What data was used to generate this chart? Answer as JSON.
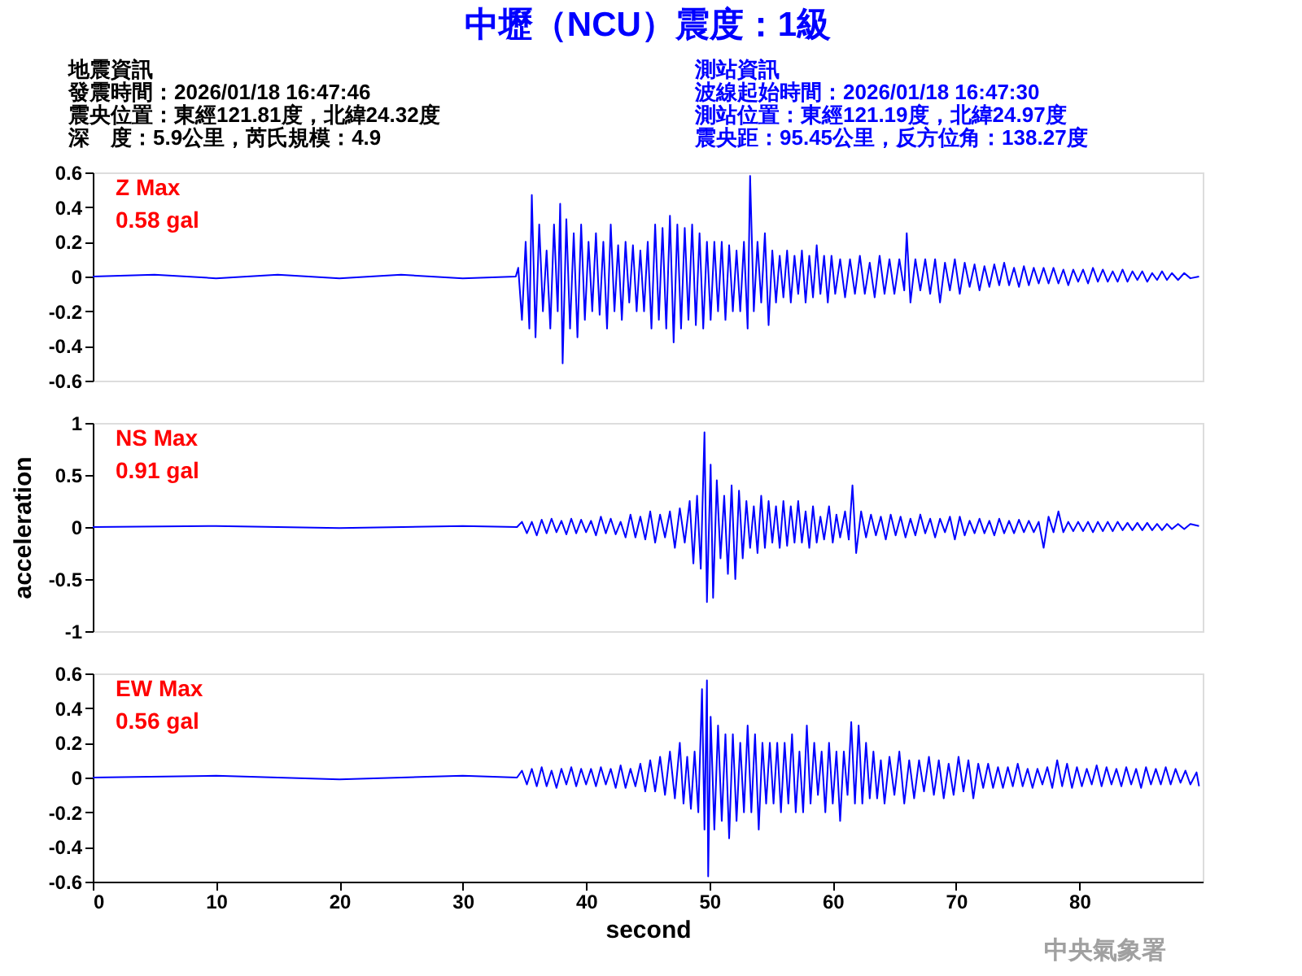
{
  "chart_data": [
    {
      "type": "line",
      "title": "中壢（NCU）震度：1級",
      "annotations": [
        "Z Max",
        "0.58 gal",
        "地震資訊",
        "發震時間：2026/01/18 16:47:46",
        "震央位置：東經121.81度，北緯24.32度",
        "深　度：5.9公里，芮氏規模：4.9",
        "測站資訊",
        "波線起始時間：2026/01/18 16:47:30",
        "測站位置：東經121.19度，北緯24.97度",
        "震央距：95.45公里，反方位角：138.27度"
      ],
      "xlim": [
        0,
        90
      ],
      "ylim": [
        -0.6,
        0.6
      ],
      "yticks": [
        -0.6,
        -0.4,
        -0.2,
        0,
        0.2,
        0.4,
        0.6
      ],
      "tick_labels": "y",
      "series": [
        {
          "color": "#0000ff",
          "x": [
            0,
            5,
            10,
            15,
            20,
            25,
            30,
            34.3,
            34.5,
            34.8,
            35.1,
            35.4,
            35.6,
            35.9,
            36.2,
            36.5,
            36.8,
            37.1,
            37.4,
            37.7,
            37.9,
            38.1,
            38.4,
            38.7,
            39.0,
            39.3,
            39.6,
            39.9,
            40.2,
            40.5,
            40.8,
            41.1,
            41.4,
            41.7,
            42.0,
            42.3,
            42.6,
            42.9,
            43.2,
            43.5,
            43.8,
            44.1,
            44.4,
            44.7,
            45.0,
            45.3,
            45.6,
            45.9,
            46.2,
            46.5,
            46.8,
            47.1,
            47.4,
            47.7,
            48.0,
            48.3,
            48.6,
            48.9,
            49.2,
            49.5,
            49.8,
            50.1,
            50.4,
            50.7,
            51.0,
            51.3,
            51.6,
            51.9,
            52.2,
            52.5,
            52.8,
            53.1,
            53.3,
            53.6,
            53.9,
            54.2,
            54.5,
            54.8,
            55.1,
            55.4,
            55.7,
            56.0,
            56.3,
            56.6,
            56.9,
            57.2,
            57.5,
            57.8,
            58.1,
            58.4,
            58.7,
            59.0,
            59.3,
            59.6,
            59.9,
            60.2,
            60.6,
            61.0,
            61.4,
            61.8,
            62.2,
            62.6,
            63.0,
            63.4,
            63.8,
            64.2,
            64.6,
            65.0,
            65.4,
            65.8,
            66.0,
            66.3,
            66.7,
            67.1,
            67.5,
            67.9,
            68.3,
            68.7,
            69.1,
            69.5,
            69.9,
            70.3,
            70.7,
            71.1,
            71.5,
            71.9,
            72.3,
            72.7,
            73.1,
            73.5,
            73.9,
            74.3,
            74.7,
            75.1,
            75.5,
            75.9,
            76.3,
            76.7,
            77.1,
            77.5,
            77.9,
            78.3,
            78.7,
            79.1,
            79.5,
            79.9,
            80.3,
            80.7,
            81.1,
            81.5,
            81.9,
            82.3,
            82.7,
            83.1,
            83.5,
            83.9,
            84.3,
            84.7,
            85.1,
            85.5,
            85.9,
            86.3,
            86.7,
            87.1,
            87.5,
            88.0,
            88.5,
            89.0,
            89.7
          ],
          "values": [
            0,
            0.01,
            -0.01,
            0.01,
            -0.01,
            0.01,
            -0.01,
            0,
            0.05,
            -0.25,
            0.2,
            -0.3,
            0.47,
            -0.35,
            0.3,
            -0.2,
            0.15,
            -0.3,
            0.3,
            -0.2,
            0.42,
            -0.5,
            0.33,
            -0.3,
            0.25,
            -0.35,
            0.3,
            -0.25,
            0.2,
            -0.2,
            0.25,
            -0.22,
            0.2,
            -0.3,
            0.3,
            -0.2,
            0.18,
            -0.25,
            0.2,
            -0.15,
            0.18,
            -0.2,
            0.15,
            -0.2,
            0.2,
            -0.3,
            0.3,
            -0.25,
            0.28,
            -0.3,
            0.35,
            -0.38,
            0.3,
            -0.3,
            0.28,
            -0.25,
            0.3,
            -0.28,
            0.25,
            -0.3,
            0.2,
            -0.25,
            0.2,
            -0.2,
            0.2,
            -0.25,
            0.18,
            -0.2,
            0.15,
            -0.2,
            0.2,
            -0.3,
            0.58,
            -0.2,
            0.2,
            -0.15,
            0.25,
            -0.28,
            0.15,
            -0.15,
            0.12,
            -0.12,
            0.15,
            -0.15,
            0.12,
            -0.1,
            0.15,
            -0.15,
            0.12,
            -0.12,
            0.18,
            -0.1,
            0.12,
            -0.15,
            0.12,
            -0.1,
            0.1,
            -0.12,
            0.1,
            -0.1,
            0.12,
            -0.1,
            0.08,
            -0.12,
            0.12,
            -0.1,
            0.1,
            -0.1,
            0.1,
            -0.08,
            0.25,
            -0.15,
            0.1,
            -0.08,
            0.1,
            -0.1,
            0.1,
            -0.15,
            0.08,
            -0.08,
            0.1,
            -0.1,
            0.08,
            -0.06,
            0.07,
            -0.08,
            0.06,
            -0.06,
            0.07,
            -0.05,
            0.08,
            -0.05,
            0.05,
            -0.06,
            0.06,
            -0.05,
            0.05,
            -0.04,
            0.05,
            -0.04,
            0.05,
            -0.04,
            0.04,
            -0.05,
            0.04,
            -0.03,
            0.04,
            -0.04,
            0.05,
            -0.03,
            0.04,
            -0.03,
            0.03,
            -0.03,
            0.04,
            -0.03,
            0.03,
            -0.02,
            0.03,
            -0.03,
            0.02,
            -0.02,
            0.03,
            -0.02,
            0.02,
            -0.02,
            0.02,
            -0.01,
            0
          ]
        }
      ]
    },
    {
      "type": "line",
      "annotations": [
        "NS Max",
        "0.91 gal"
      ],
      "ylabel": "acceleration",
      "xlim": [
        0,
        90
      ],
      "ylim": [
        -1,
        1
      ],
      "yticks": [
        -1,
        -0.5,
        0,
        0.5,
        1
      ],
      "tick_labels": "y",
      "series": [
        {
          "color": "#0000ff",
          "x": [
            0,
            10,
            20,
            30,
            34.4,
            34.8,
            35.2,
            35.6,
            36.0,
            36.4,
            36.8,
            37.2,
            37.6,
            38.0,
            38.4,
            38.8,
            39.2,
            39.6,
            40.0,
            40.4,
            40.8,
            41.2,
            41.6,
            42.0,
            42.4,
            42.8,
            43.2,
            43.6,
            44.0,
            44.4,
            44.8,
            45.2,
            45.6,
            46.0,
            46.4,
            46.8,
            47.2,
            47.6,
            48.0,
            48.4,
            48.7,
            49.0,
            49.3,
            49.6,
            49.8,
            50.1,
            50.3,
            50.6,
            50.9,
            51.2,
            51.5,
            51.8,
            52.1,
            52.4,
            52.7,
            53.0,
            53.3,
            53.6,
            53.9,
            54.2,
            54.5,
            54.8,
            55.1,
            55.4,
            55.7,
            56.0,
            56.3,
            56.6,
            56.9,
            57.2,
            57.5,
            57.8,
            58.1,
            58.4,
            58.7,
            59.0,
            59.3,
            59.7,
            60.0,
            60.3,
            60.6,
            61.0,
            61.3,
            61.6,
            61.9,
            62.3,
            62.7,
            63.1,
            63.5,
            63.9,
            64.3,
            64.7,
            65.1,
            65.5,
            65.9,
            66.3,
            66.7,
            67.1,
            67.5,
            67.9,
            68.3,
            68.7,
            69.1,
            69.5,
            69.9,
            70.3,
            70.7,
            71.1,
            71.5,
            71.9,
            72.3,
            72.7,
            73.1,
            73.5,
            73.9,
            74.3,
            74.7,
            75.1,
            75.5,
            75.9,
            76.3,
            76.7,
            77.1,
            77.5,
            77.9,
            78.3,
            78.7,
            79.1,
            79.5,
            79.9,
            80.3,
            80.7,
            81.1,
            81.5,
            81.9,
            82.3,
            82.7,
            83.1,
            83.5,
            83.9,
            84.3,
            84.7,
            85.1,
            85.5,
            85.9,
            86.3,
            86.7,
            87.1,
            87.5,
            88.0,
            88.5,
            89.0,
            89.7
          ],
          "values": [
            0,
            0.01,
            -0.01,
            0.01,
            0,
            0.05,
            -0.06,
            0.05,
            -0.08,
            0.07,
            -0.06,
            0.08,
            -0.05,
            0.06,
            -0.07,
            0.08,
            -0.06,
            0.07,
            -0.05,
            0.06,
            -0.08,
            0.1,
            -0.06,
            0.08,
            -0.07,
            0.05,
            -0.1,
            0.12,
            -0.1,
            0.1,
            -0.12,
            0.15,
            -0.15,
            0.12,
            -0.1,
            0.15,
            -0.2,
            0.18,
            -0.15,
            0.25,
            -0.35,
            0.3,
            -0.4,
            0.91,
            -0.72,
            0.6,
            -0.68,
            0.45,
            -0.3,
            0.3,
            -0.45,
            0.4,
            -0.5,
            0.35,
            -0.3,
            0.25,
            -0.2,
            0.2,
            -0.25,
            0.3,
            -0.2,
            0.25,
            -0.15,
            0.2,
            -0.2,
            0.25,
            -0.18,
            0.2,
            -0.15,
            0.25,
            -0.15,
            0.15,
            -0.2,
            0.2,
            -0.15,
            0.1,
            -0.12,
            0.2,
            -0.15,
            0.12,
            -0.1,
            0.15,
            -0.12,
            0.4,
            -0.25,
            0.15,
            -0.1,
            0.12,
            -0.08,
            0.1,
            -0.12,
            0.12,
            -0.08,
            0.1,
            -0.1,
            0.08,
            -0.08,
            0.12,
            -0.06,
            0.08,
            -0.1,
            0.08,
            -0.05,
            0.1,
            -0.12,
            0.1,
            -0.08,
            0.06,
            -0.06,
            0.08,
            -0.06,
            0.06,
            -0.08,
            0.08,
            -0.06,
            0.06,
            -0.06,
            0.07,
            -0.05,
            0.06,
            -0.05,
            0.05,
            -0.2,
            0.1,
            -0.05,
            0.15,
            -0.05,
            0.05,
            -0.04,
            0.05,
            -0.04,
            0.05,
            -0.05,
            0.05,
            -0.04,
            0.05,
            -0.04,
            0.05,
            -0.03,
            0.04,
            -0.03,
            0.04,
            -0.03,
            0.04,
            -0.03,
            0.03,
            -0.03,
            0.03,
            -0.02,
            0.03,
            -0.02,
            0.03,
            0.01
          ]
        }
      ]
    },
    {
      "type": "line",
      "annotations": [
        "EW Max",
        "0.56 gal",
        "中央氣象署"
      ],
      "xlabel": "second",
      "xlim": [
        0,
        90
      ],
      "xticks": [
        0,
        10,
        20,
        30,
        40,
        50,
        60,
        70,
        80
      ],
      "ylim": [
        -0.6,
        0.6
      ],
      "yticks": [
        -0.6,
        -0.4,
        -0.2,
        0,
        0.2,
        0.4,
        0.6
      ],
      "series": [
        {
          "color": "#0000ff",
          "x": [
            0,
            10,
            20,
            30,
            34.4,
            34.8,
            35.2,
            35.6,
            36.0,
            36.4,
            36.8,
            37.2,
            37.6,
            38.0,
            38.4,
            38.8,
            39.2,
            39.6,
            40.0,
            40.4,
            40.8,
            41.2,
            41.6,
            42.0,
            42.4,
            42.8,
            43.2,
            43.6,
            44.0,
            44.4,
            44.8,
            45.2,
            45.6,
            46.0,
            46.4,
            46.8,
            47.2,
            47.6,
            47.9,
            48.2,
            48.5,
            48.8,
            49.1,
            49.4,
            49.6,
            49.8,
            49.9,
            50.1,
            50.4,
            50.7,
            51.0,
            51.3,
            51.6,
            51.9,
            52.2,
            52.5,
            52.8,
            53.1,
            53.4,
            53.7,
            54.0,
            54.3,
            54.6,
            54.9,
            55.2,
            55.5,
            55.8,
            56.1,
            56.4,
            56.7,
            57.0,
            57.3,
            57.6,
            57.9,
            58.2,
            58.5,
            58.8,
            59.1,
            59.4,
            59.7,
            60.0,
            60.3,
            60.6,
            60.9,
            61.2,
            61.5,
            61.8,
            62.1,
            62.4,
            62.7,
            63.0,
            63.3,
            63.6,
            63.9,
            64.2,
            64.6,
            65.0,
            65.4,
            65.8,
            66.2,
            66.6,
            67.0,
            67.4,
            67.8,
            68.2,
            68.6,
            69.0,
            69.4,
            69.8,
            70.2,
            70.6,
            71.0,
            71.4,
            71.8,
            72.2,
            72.6,
            73.0,
            73.4,
            73.8,
            74.2,
            74.6,
            75.0,
            75.4,
            75.8,
            76.2,
            76.6,
            77.0,
            77.4,
            77.8,
            78.2,
            78.6,
            79.0,
            79.4,
            79.8,
            80.2,
            80.6,
            81.0,
            81.4,
            81.8,
            82.2,
            82.6,
            83.0,
            83.4,
            83.8,
            84.2,
            84.6,
            85.0,
            85.4,
            85.8,
            86.2,
            86.6,
            87.0,
            87.4,
            87.8,
            88.2,
            88.6,
            89.0,
            89.5,
            89.7
          ],
          "values": [
            0,
            0.01,
            -0.01,
            0.01,
            0,
            0.04,
            -0.04,
            0.05,
            -0.05,
            0.06,
            -0.05,
            0.04,
            -0.06,
            0.05,
            -0.04,
            0.06,
            -0.05,
            0.05,
            -0.04,
            0.05,
            -0.05,
            0.06,
            -0.04,
            0.05,
            -0.06,
            0.07,
            -0.06,
            0.05,
            -0.05,
            0.08,
            -0.08,
            0.1,
            -0.08,
            0.12,
            -0.1,
            0.15,
            -0.12,
            0.2,
            -0.15,
            0.12,
            -0.18,
            0.15,
            -0.2,
            0.51,
            -0.3,
            0.56,
            -0.57,
            0.35,
            -0.3,
            0.3,
            -0.25,
            0.25,
            -0.35,
            0.25,
            -0.25,
            0.2,
            -0.2,
            0.3,
            -0.2,
            0.25,
            -0.3,
            0.2,
            -0.15,
            0.2,
            -0.15,
            0.2,
            -0.2,
            0.2,
            -0.15,
            0.25,
            -0.2,
            0.15,
            -0.2,
            0.3,
            -0.15,
            0.2,
            -0.1,
            0.15,
            -0.2,
            0.2,
            -0.15,
            0.15,
            -0.25,
            0.15,
            -0.1,
            0.32,
            -0.15,
            0.3,
            -0.15,
            0.2,
            -0.12,
            0.15,
            -0.12,
            0.1,
            -0.15,
            0.12,
            -0.1,
            0.15,
            -0.15,
            0.1,
            -0.12,
            0.1,
            -0.08,
            0.12,
            -0.1,
            0.1,
            -0.12,
            0.08,
            -0.1,
            0.12,
            -0.08,
            0.1,
            -0.12,
            0.08,
            -0.06,
            0.08,
            -0.06,
            0.06,
            -0.06,
            0.06,
            -0.05,
            0.08,
            -0.05,
            0.05,
            -0.06,
            0.05,
            -0.04,
            0.06,
            -0.06,
            0.1,
            -0.05,
            0.08,
            -0.06,
            0.06,
            -0.05,
            0.05,
            -0.04,
            0.07,
            -0.05,
            0.06,
            -0.04,
            0.05,
            -0.05,
            0.06,
            -0.04,
            0.05,
            -0.06,
            0.06,
            -0.04,
            0.05,
            -0.04,
            0.06,
            -0.04,
            0.05,
            -0.03,
            0.04,
            -0.04,
            0.03,
            -0.05
          ]
        }
      ]
    }
  ]
}
